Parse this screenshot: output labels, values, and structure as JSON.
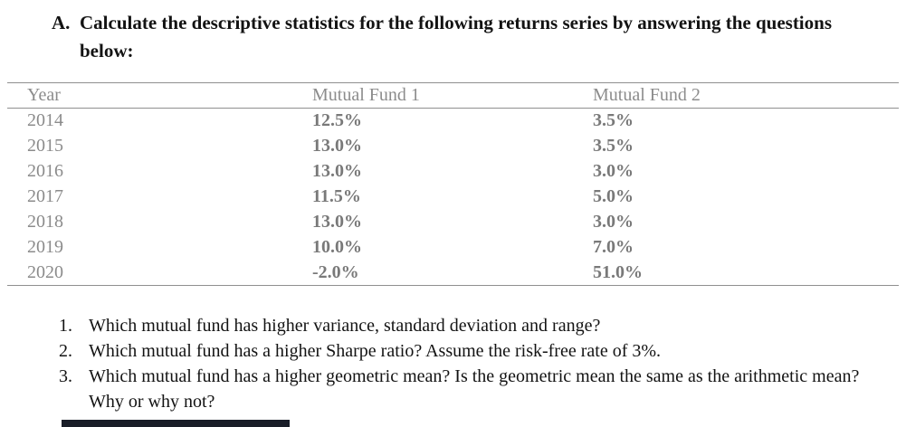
{
  "title": {
    "label": "A.",
    "text": "Calculate the descriptive statistics for the following returns series by answering the questions below:"
  },
  "table": {
    "columns": [
      "Year",
      "Mutual Fund 1",
      "Mutual Fund 2"
    ],
    "rows": [
      [
        "2014",
        "12.5%",
        "3.5%"
      ],
      [
        "2015",
        "13.0%",
        "3.5%"
      ],
      [
        "2016",
        "13.0%",
        "3.0%"
      ],
      [
        "2017",
        "11.5%",
        "5.0%"
      ],
      [
        "2018",
        "13.0%",
        "3.0%"
      ],
      [
        "2019",
        "10.0%",
        "7.0%"
      ],
      [
        "2020",
        "-2.0%",
        "51.0%"
      ]
    ]
  },
  "questions": [
    {
      "number": "1.",
      "text": "Which mutual fund has higher variance, standard deviation and range?"
    },
    {
      "number": "2.",
      "text": "Which mutual fund has a higher Sharpe ratio? Assume the risk-free rate of 3%."
    },
    {
      "number": "3.",
      "text": "Which mutual fund has a higher geometric mean? Is the geometric mean the same as the arithmetic mean? Why or why not?"
    }
  ],
  "colors": {
    "body_text": "#131313",
    "table_header_text": "#8c8c8c",
    "table_value_text": "#797979",
    "table_border": "#8f8f8f",
    "dark_bar": "#191d28"
  }
}
